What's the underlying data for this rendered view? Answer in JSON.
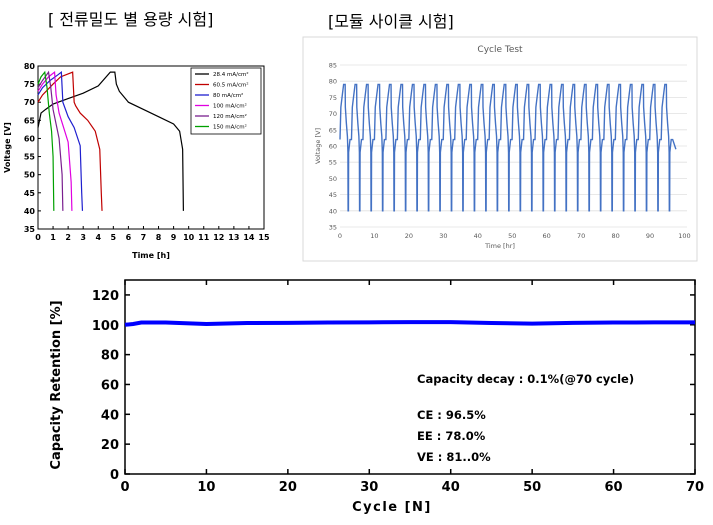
{
  "headings": {
    "left": "[ 전류밀도 별 용량 시험]",
    "right": "[모듈 사이클 시험]"
  },
  "chart_data": [
    {
      "type": "line",
      "xlabel": "Time [h]",
      "ylabel": "Voltage [V]",
      "xlim": [
        0,
        15
      ],
      "ylim": [
        35,
        80
      ],
      "x_ticks": [
        "0",
        "1",
        "2",
        "3",
        "4",
        "5",
        "6",
        "7",
        "8",
        "9",
        "10",
        "11",
        "12",
        "13",
        "14",
        "15"
      ],
      "y_ticks": [
        "35",
        "40",
        "45",
        "50",
        "55",
        "60",
        "65",
        "70",
        "75",
        "80"
      ],
      "legend_position": "top-right",
      "series": [
        {
          "name": "28.4 mA/cm²",
          "color": "#000000",
          "x": [
            0,
            0.2,
            0.5,
            1,
            2,
            3,
            4,
            4.8,
            5.1,
            5.2,
            5.4,
            6,
            7,
            8,
            9,
            9.4,
            9.6,
            9.65
          ],
          "y": [
            63,
            67,
            68,
            69.5,
            71,
            72.5,
            74.5,
            78.3,
            78.3,
            75,
            73,
            70,
            68,
            66,
            64,
            62,
            57,
            40
          ]
        },
        {
          "name": "60.5 mA/cm²",
          "color": "#c00000",
          "x": [
            0,
            0.3,
            1,
            1.5,
            2.3,
            2.4,
            2.5,
            2.8,
            3.3,
            3.8,
            4.1,
            4.2,
            4.25
          ],
          "y": [
            70,
            72,
            75,
            77,
            78.3,
            70,
            69,
            67,
            65,
            62,
            57,
            45,
            40
          ]
        },
        {
          "name": "80 mA/cm²",
          "color": "#1f1fcf",
          "x": [
            0,
            0.3,
            0.8,
            1.3,
            1.55,
            1.65,
            2.0,
            2.4,
            2.8,
            2.9,
            2.95
          ],
          "y": [
            72,
            74,
            76,
            77.5,
            78.3,
            70,
            66,
            63,
            58,
            45,
            40
          ]
        },
        {
          "name": "100 mA/cm²",
          "color": "#e000e0",
          "x": [
            0,
            0.3,
            0.7,
            1.1,
            1.2,
            1.4,
            1.7,
            2.0,
            2.2,
            2.25
          ],
          "y": [
            73,
            75,
            77,
            78.3,
            72,
            67,
            63,
            59,
            48,
            40
          ]
        },
        {
          "name": "120 mA/cm²",
          "color": "#7a1f8f",
          "x": [
            0,
            0.3,
            0.7,
            0.85,
            1.0,
            1.2,
            1.4,
            1.6,
            1.65
          ],
          "y": [
            74,
            76,
            78.3,
            74,
            68,
            64,
            60,
            50,
            40
          ]
        },
        {
          "name": "150 mA/cm²",
          "color": "#00a000",
          "x": [
            0,
            0.2,
            0.45,
            0.6,
            0.75,
            0.9,
            1.0,
            1.05
          ],
          "y": [
            75,
            77,
            78.3,
            74,
            67,
            62,
            55,
            40
          ]
        }
      ]
    },
    {
      "type": "line",
      "title": "Cycle Test",
      "xlabel": "Time [hr]",
      "ylabel": "Voltage [V]",
      "xlim": [
        0,
        100
      ],
      "ylim": [
        35,
        85
      ],
      "x_ticks": [
        "0",
        "10",
        "20",
        "30",
        "40",
        "50",
        "60",
        "70",
        "80",
        "90",
        "100"
      ],
      "y_ticks": [
        "35",
        "40",
        "45",
        "50",
        "55",
        "60",
        "65",
        "70",
        "75",
        "80",
        "85"
      ],
      "grid": true,
      "series": [
        {
          "name": "",
          "color": "#4472c4",
          "cycle_period_hr": 3.33,
          "start_hr": 0,
          "end_hr": 97.5,
          "cycles": 29,
          "v_max": 79,
          "v_min": 40,
          "end_voltage": 59
        }
      ]
    },
    {
      "type": "line",
      "xlabel": "Cycle [N]",
      "ylabel": "Capacity Retention [%]",
      "xlim": [
        0,
        70
      ],
      "ylim": [
        0,
        130
      ],
      "x_ticks": [
        "0",
        "10",
        "20",
        "30",
        "40",
        "50",
        "60",
        "70"
      ],
      "y_ticks": [
        "0",
        "20",
        "40",
        "60",
        "80",
        "100",
        "120"
      ],
      "series": [
        {
          "name": "",
          "color": "#0000ff",
          "x": [
            0,
            1,
            2,
            5,
            10,
            15,
            20,
            25,
            30,
            35,
            40,
            45,
            50,
            55,
            60,
            65,
            70
          ],
          "y": [
            100,
            100.5,
            101.5,
            101.5,
            100.5,
            101.2,
            101.3,
            101.5,
            101.6,
            101.8,
            101.8,
            101.2,
            100.8,
            101.3,
            101.5,
            101.6,
            101.6
          ]
        }
      ],
      "annotations": [
        "Capacity decay : 0.1%(@70 cycle)",
        "CE : 96.5%",
        "EE : 78.0%",
        "VE : 81..0%"
      ]
    }
  ]
}
